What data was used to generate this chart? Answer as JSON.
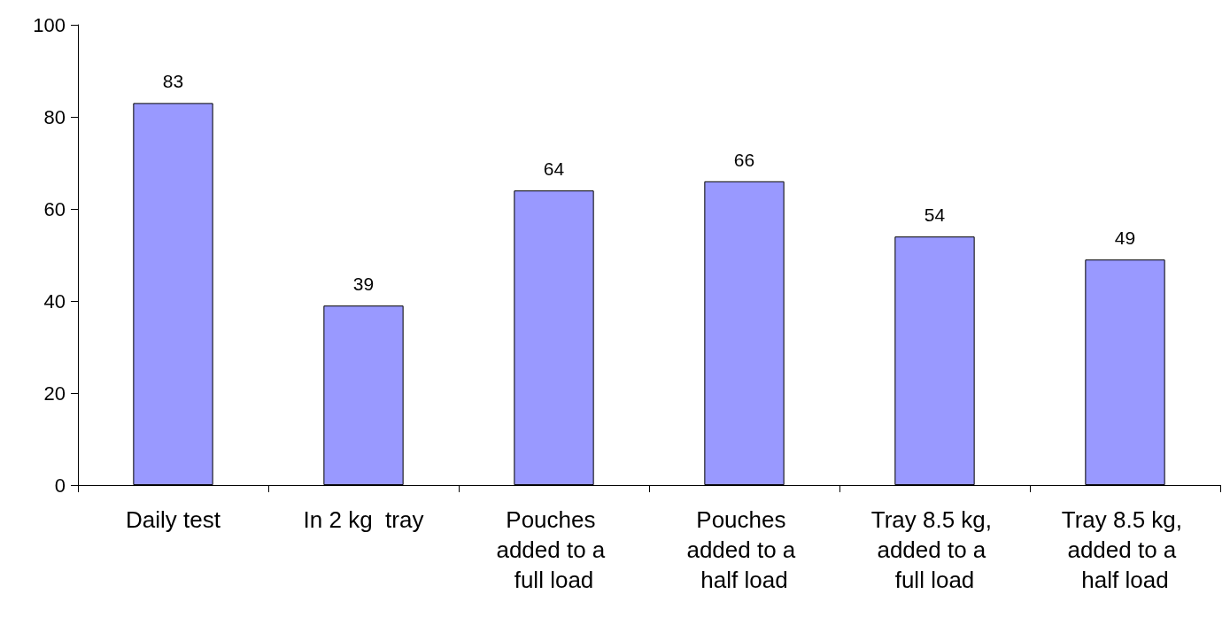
{
  "chart_data": {
    "type": "bar",
    "categories": [
      "Daily test",
      "In 2 kg  tray",
      "Pouches added to a full load",
      "Pouches added to a half load",
      "Tray 8.5 kg, added to a full load",
      "Tray 8.5 kg, added to a half load"
    ],
    "values": [
      83,
      39,
      64,
      66,
      54,
      49
    ],
    "color": "#9999ff",
    "ylim": [
      0,
      100
    ],
    "yticks": [
      0,
      20,
      40,
      60,
      80,
      100
    ],
    "grid": false,
    "data_labels": true
  }
}
